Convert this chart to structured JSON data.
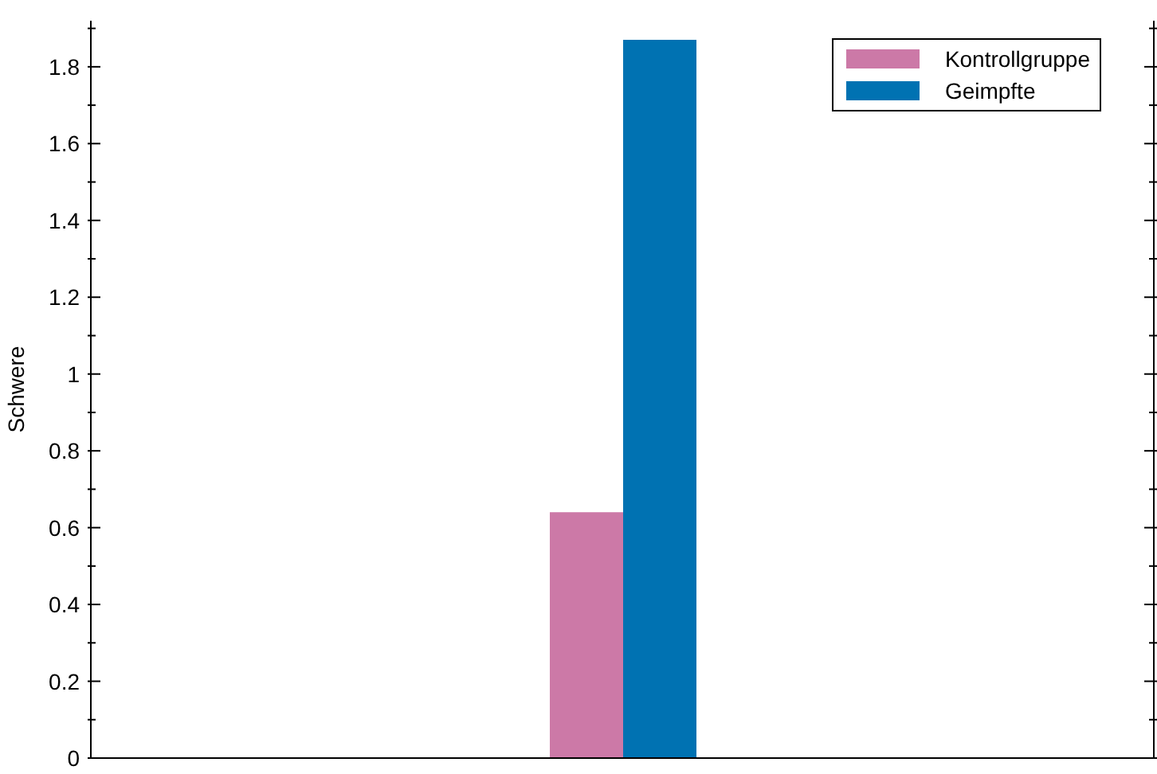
{
  "chart_data": {
    "type": "bar",
    "ylabel": "Schwere",
    "categories": [
      null
    ],
    "series": [
      {
        "name": "Kontrollgruppe",
        "color": "#cc79a7",
        "values": [
          0.64
        ]
      },
      {
        "name": "Geimpfte",
        "color": "#0072b2",
        "values": [
          1.87
        ]
      }
    ],
    "ylim": [
      0,
      1.92
    ],
    "yticks": [
      0,
      {
        "value": 0.1,
        "label": null
      },
      0.2,
      {
        "value": 0.3,
        "label": null
      },
      0.4,
      {
        "value": 0.5,
        "label": null
      },
      0.6,
      {
        "value": 0.7,
        "label": null
      },
      0.8,
      {
        "value": 0.9,
        "label": null
      },
      1,
      {
        "value": 1.1,
        "label": null
      },
      1.2,
      {
        "value": 1.3,
        "label": null
      },
      1.4,
      {
        "value": 1.5,
        "label": null
      },
      1.6,
      {
        "value": 1.7,
        "label": null
      },
      1.8,
      {
        "value": 1.9,
        "label": null
      }
    ],
    "grid": false,
    "legend": "top right"
  }
}
